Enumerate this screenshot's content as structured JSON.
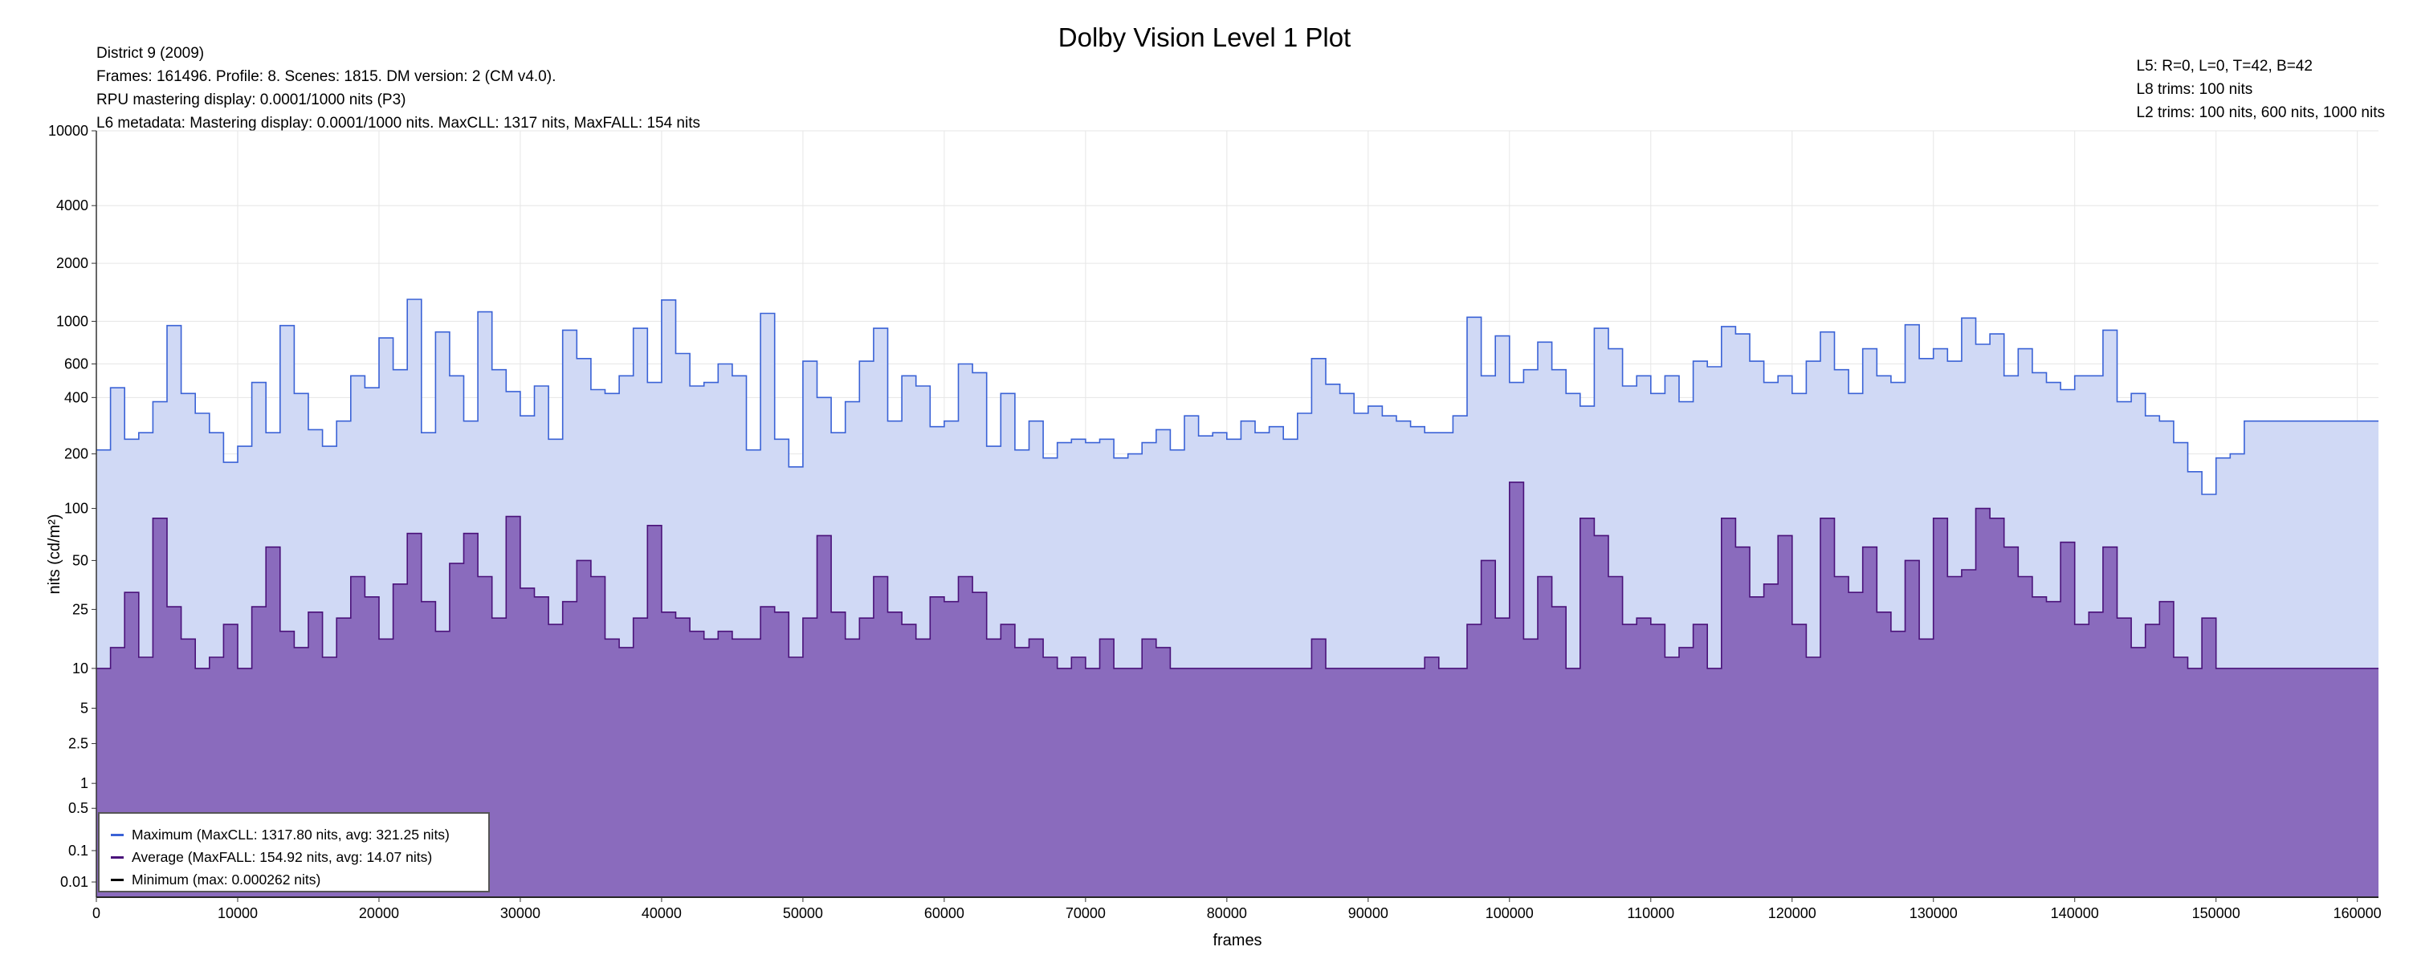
{
  "title": "Dolby Vision Level 1 Plot",
  "info_left": [
    "District 9 (2009)",
    "Frames: 161496. Profile: 8. Scenes: 1815. DM version: 2 (CM v4.0).",
    "RPU mastering display: 0.0001/1000 nits  (P3)",
    "L6 metadata: Mastering display: 0.0001/1000 nits. MaxCLL: 1317 nits, MaxFALL: 154 nits"
  ],
  "info_right": [
    "L5: R=0, L=0, T=42, B=42",
    "L8 trims: 100 nits",
    "L2 trims: 100 nits, 600 nits, 1000 nits"
  ],
  "legend": {
    "maximum": "Maximum (MaxCLL: 1317.80 nits, avg: 321.25 nits)",
    "average": "Average (MaxFALL: 154.92 nits, avg: 14.07 nits)",
    "minimum": "Minimum (max: 0.000262 nits)"
  },
  "colors": {
    "maximum_line": "#3a62d6",
    "maximum_fill": "#d0d9f5",
    "average_line": "#4a127a",
    "average_fill": "#8a6bbd",
    "minimum_line": "#000000",
    "grid": "#e6e6e6"
  },
  "chart_data": {
    "type": "area",
    "title": "Dolby Vision Level 1 Plot",
    "xlabel": "frames",
    "ylabel": "nits (cd/m²)",
    "xlim": [
      0,
      161496
    ],
    "ylim": [
      0.0001,
      10000
    ],
    "y_scale": "PQ (perceptual quantizer)",
    "grid": true,
    "legend_position": "bottom-left",
    "x_ticks": [
      0,
      10000,
      20000,
      30000,
      40000,
      50000,
      60000,
      70000,
      80000,
      90000,
      100000,
      110000,
      120000,
      130000,
      140000,
      150000,
      160000
    ],
    "y_ticks": [
      0.01,
      0.1,
      0.5,
      1,
      2.5,
      5,
      10,
      25,
      50,
      100,
      200,
      400,
      600,
      1000,
      2000,
      4000,
      10000
    ],
    "series": [
      {
        "name": "Maximum (MaxCLL: 1317.80 nits, avg: 321.25 nits)",
        "x": [
          0,
          1000,
          2000,
          3000,
          4000,
          5000,
          6000,
          7000,
          8000,
          9000,
          10000,
          11000,
          12000,
          13000,
          14000,
          15000,
          16000,
          17000,
          18000,
          19000,
          20000,
          21000,
          22000,
          23000,
          24000,
          25000,
          26000,
          27000,
          28000,
          29000,
          30000,
          31000,
          32000,
          33000,
          34000,
          35000,
          36000,
          37000,
          38000,
          39000,
          40000,
          41000,
          42000,
          43000,
          44000,
          45000,
          46000,
          47000,
          48000,
          49000,
          50000,
          51000,
          52000,
          53000,
          54000,
          55000,
          56000,
          57000,
          58000,
          59000,
          60000,
          61000,
          62000,
          63000,
          64000,
          65000,
          66000,
          67000,
          68000,
          69000,
          70000,
          71000,
          72000,
          73000,
          74000,
          75000,
          76000,
          77000,
          78000,
          79000,
          80000,
          81000,
          82000,
          83000,
          84000,
          85000,
          86000,
          87000,
          88000,
          89000,
          90000,
          91000,
          92000,
          93000,
          94000,
          95000,
          96000,
          97000,
          98000,
          99000,
          100000,
          101000,
          102000,
          103000,
          104000,
          105000,
          106000,
          107000,
          108000,
          109000,
          110000,
          111000,
          112000,
          113000,
          114000,
          115000,
          116000,
          117000,
          118000,
          119000,
          120000,
          121000,
          122000,
          123000,
          124000,
          125000,
          126000,
          127000,
          128000,
          129000,
          130000,
          131000,
          132000,
          133000,
          134000,
          135000,
          136000,
          137000,
          138000,
          139000,
          140000,
          141000,
          142000,
          143000,
          144000,
          145000,
          146000,
          147000,
          148000,
          149000,
          150000,
          151000,
          152000,
          155000,
          161496
        ],
        "values": [
          210,
          450,
          240,
          260,
          380,
          950,
          420,
          330,
          260,
          180,
          220,
          480,
          260,
          950,
          420,
          270,
          220,
          300,
          520,
          450,
          820,
          560,
          1300,
          260,
          880,
          520,
          300,
          1120,
          560,
          430,
          320,
          460,
          240,
          900,
          640,
          440,
          420,
          520,
          920,
          480,
          1290,
          680,
          460,
          480,
          600,
          520,
          210,
          1100,
          240,
          170,
          620,
          400,
          260,
          380,
          620,
          920,
          300,
          520,
          460,
          280,
          300,
          600,
          540,
          220,
          420,
          210,
          300,
          190,
          230,
          240,
          230,
          240,
          190,
          200,
          230,
          270,
          210,
          320,
          250,
          260,
          240,
          300,
          260,
          280,
          240,
          330,
          640,
          470,
          420,
          330,
          360,
          320,
          300,
          280,
          260,
          260,
          320,
          1050,
          520,
          840,
          480,
          560,
          780,
          560,
          420,
          360,
          920,
          720,
          460,
          520,
          420,
          520,
          380,
          620,
          580,
          940,
          860,
          620,
          480,
          520,
          420,
          620,
          880,
          560,
          420,
          720,
          520,
          480,
          960,
          640,
          720,
          620,
          1040,
          760,
          860,
          520,
          720,
          540,
          480,
          440,
          520,
          520,
          900,
          380,
          420,
          320,
          300,
          230,
          160,
          120,
          190,
          200,
          300,
          300,
          300
        ]
      },
      {
        "name": "Average (MaxFALL: 154.92 nits, avg: 14.07 nits)",
        "x": [
          0,
          1000,
          2000,
          3000,
          4000,
          5000,
          6000,
          7000,
          8000,
          9000,
          10000,
          11000,
          12000,
          13000,
          14000,
          15000,
          16000,
          17000,
          18000,
          19000,
          20000,
          21000,
          22000,
          23000,
          24000,
          25000,
          26000,
          27000,
          28000,
          29000,
          30000,
          31000,
          32000,
          33000,
          34000,
          35000,
          36000,
          37000,
          38000,
          39000,
          40000,
          41000,
          42000,
          43000,
          44000,
          45000,
          46000,
          47000,
          48000,
          49000,
          50000,
          51000,
          52000,
          53000,
          54000,
          55000,
          56000,
          57000,
          58000,
          59000,
          60000,
          61000,
          62000,
          63000,
          64000,
          65000,
          66000,
          67000,
          68000,
          69000,
          70000,
          71000,
          72000,
          73000,
          74000,
          75000,
          76000,
          77000,
          78000,
          79000,
          80000,
          81000,
          82000,
          83000,
          84000,
          85000,
          86000,
          87000,
          88000,
          89000,
          90000,
          91000,
          92000,
          93000,
          94000,
          95000,
          96000,
          97000,
          98000,
          99000,
          100000,
          101000,
          102000,
          103000,
          104000,
          105000,
          106000,
          107000,
          108000,
          109000,
          110000,
          111000,
          112000,
          113000,
          114000,
          115000,
          116000,
          117000,
          118000,
          119000,
          120000,
          121000,
          122000,
          123000,
          124000,
          125000,
          126000,
          127000,
          128000,
          129000,
          130000,
          131000,
          132000,
          133000,
          134000,
          135000,
          136000,
          137000,
          138000,
          139000,
          140000,
          141000,
          142000,
          143000,
          144000,
          145000,
          146000,
          147000,
          148000,
          149000,
          150000,
          151000,
          152000,
          155000,
          161496
        ],
        "values": [
          10,
          14,
          32,
          12,
          88,
          26,
          16,
          10,
          12,
          20,
          10,
          26,
          60,
          18,
          14,
          24,
          12,
          22,
          40,
          30,
          16,
          36,
          72,
          28,
          18,
          48,
          72,
          40,
          22,
          90,
          34,
          30,
          20,
          28,
          50,
          40,
          16,
          14,
          22,
          80,
          24,
          22,
          18,
          16,
          18,
          16,
          16,
          26,
          24,
          12,
          22,
          70,
          24,
          16,
          22,
          40,
          24,
          20,
          16,
          30,
          28,
          40,
          32,
          16,
          20,
          14,
          16,
          12,
          10,
          12,
          10,
          16,
          10,
          10,
          16,
          14,
          10,
          10,
          10,
          10,
          10,
          10,
          10,
          10,
          10,
          10,
          16,
          10,
          10,
          10,
          10,
          10,
          10,
          10,
          12,
          10,
          10,
          20,
          50,
          22,
          140,
          16,
          40,
          26,
          10,
          88,
          70,
          40,
          20,
          22,
          20,
          12,
          14,
          20,
          10,
          88,
          60,
          30,
          36,
          70,
          20,
          12,
          88,
          40,
          32,
          60,
          24,
          18,
          50,
          16,
          88,
          40,
          44,
          100,
          88,
          60,
          40,
          30,
          28,
          64,
          20,
          24,
          60,
          22,
          14,
          20,
          28,
          12,
          10,
          22,
          10,
          10,
          10,
          10,
          10
        ]
      },
      {
        "name": "Minimum (max: 0.000262 nits)",
        "x": [
          0,
          161496
        ],
        "values": [
          0.0001,
          0.0001
        ]
      }
    ]
  }
}
